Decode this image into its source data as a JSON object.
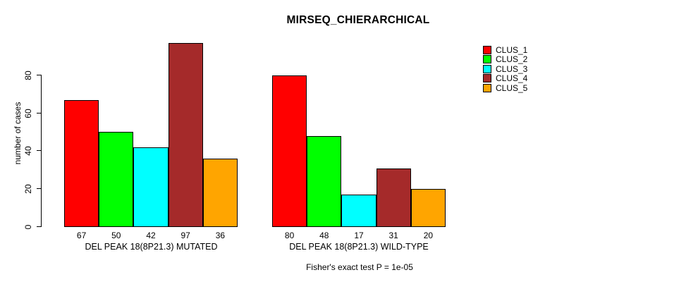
{
  "chart_data": {
    "type": "bar",
    "title": "MIRSEQ_CHIERARCHICAL",
    "ylabel": "number of cases",
    "xlabel": "",
    "ylim": [
      0,
      80
    ],
    "yticks": [
      0,
      20,
      40,
      60,
      80
    ],
    "grid": false,
    "legend_position": "top-right",
    "bar_value_labels": true,
    "categories": [
      "DEL PEAK 18(8P21.3) MUTATED",
      "DEL PEAK 18(8P21.3) WILD-TYPE"
    ],
    "series": [
      {
        "name": "CLUS_1",
        "color": "#FF0000",
        "values": [
          67,
          80
        ]
      },
      {
        "name": "CLUS_2",
        "color": "#00FF00",
        "values": [
          50,
          48
        ]
      },
      {
        "name": "CLUS_3",
        "color": "#00FFFF",
        "values": [
          42,
          17
        ]
      },
      {
        "name": "CLUS_4",
        "color": "#A52A2A",
        "values": [
          97,
          31
        ]
      },
      {
        "name": "CLUS_5",
        "color": "#FFA500",
        "values": [
          36,
          20
        ]
      }
    ],
    "annotation": "Fisher's exact test P = 1e-05"
  }
}
